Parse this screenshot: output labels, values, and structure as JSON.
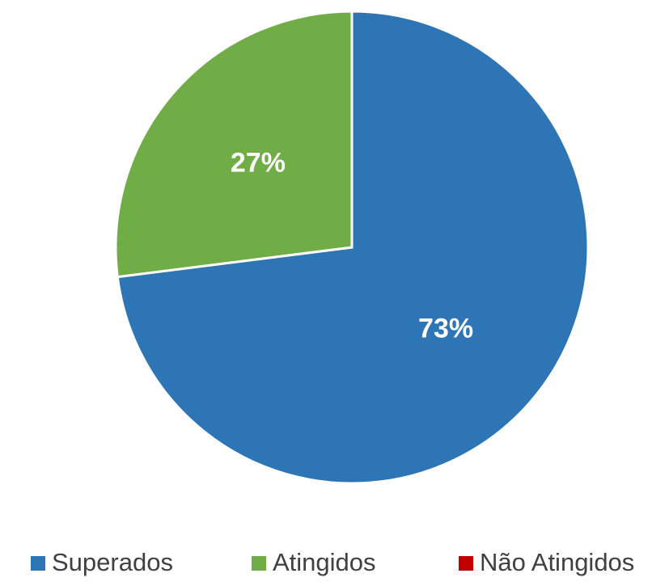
{
  "chart_data": {
    "type": "pie",
    "categories": [
      "Superados",
      "Atingidos",
      "Não Atingidos"
    ],
    "values": [
      73,
      27,
      0
    ],
    "value_labels": [
      "73%",
      "27%",
      null
    ],
    "colors": [
      "#2e75b6",
      "#70ad47",
      "#c00000"
    ],
    "legend": "bottom"
  }
}
